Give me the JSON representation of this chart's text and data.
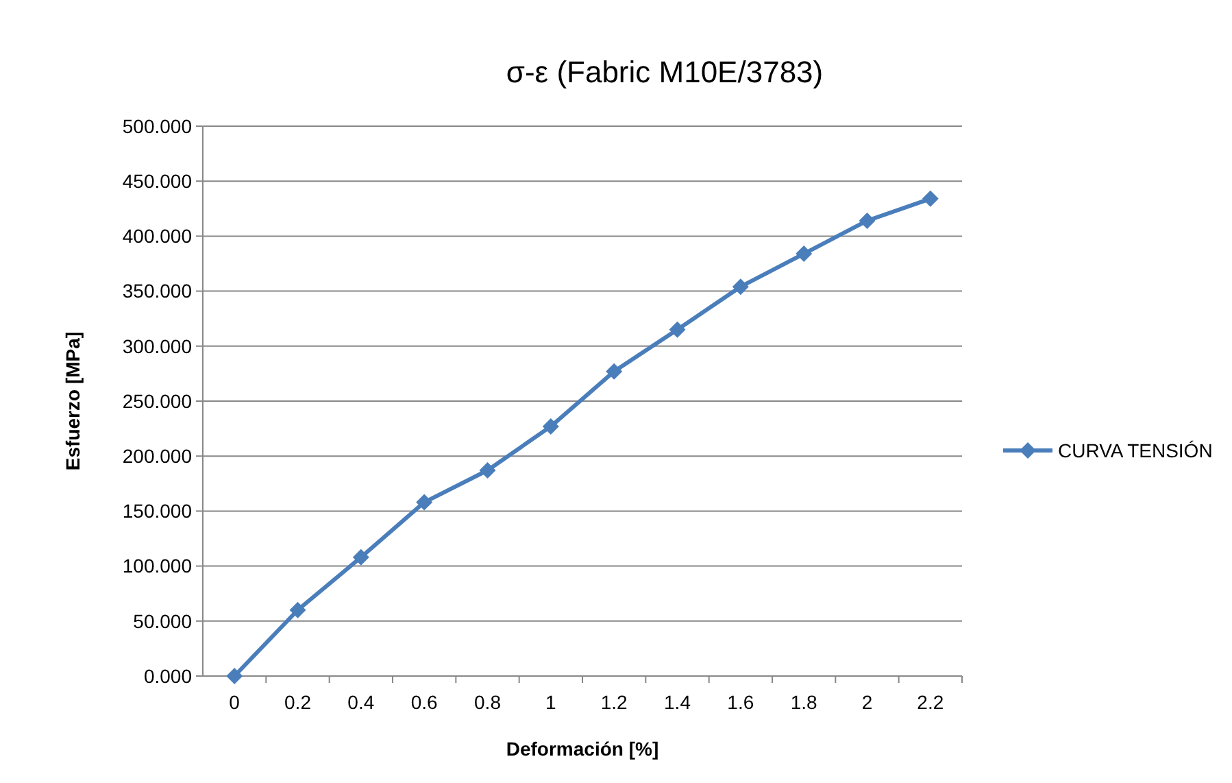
{
  "chart_data": {
    "type": "line",
    "title": "σ-ε (Fabric M10E/3783)",
    "xlabel": "Deformación [%]",
    "ylabel": "Esfuerzo [MPa]",
    "categories": [
      "0",
      "0.2",
      "0.4",
      "0.6",
      "0.8",
      "1",
      "1.2",
      "1.4",
      "1.6",
      "1.8",
      "2",
      "2.2"
    ],
    "series": [
      {
        "name": "CURVA TENSIÓN",
        "color": "#4a7ebb",
        "values": [
          0,
          60,
          108,
          158,
          187,
          227,
          277,
          315,
          354,
          384,
          414,
          434
        ]
      }
    ],
    "ylim": [
      0,
      500
    ],
    "yticks": [
      {
        "value": 0,
        "label": "0.000"
      },
      {
        "value": 50,
        "label": "50.000"
      },
      {
        "value": 100,
        "label": "100.000"
      },
      {
        "value": 150,
        "label": "150.000"
      },
      {
        "value": 200,
        "label": "200.000"
      },
      {
        "value": 250,
        "label": "250.000"
      },
      {
        "value": 300,
        "label": "300.000"
      },
      {
        "value": 350,
        "label": "350.000"
      },
      {
        "value": 400,
        "label": "400.000"
      },
      {
        "value": 450,
        "label": "450.000"
      },
      {
        "value": 500,
        "label": "500.000"
      }
    ],
    "grid": "y",
    "legend": "right",
    "marker": "diamond",
    "line_style": "solid"
  }
}
